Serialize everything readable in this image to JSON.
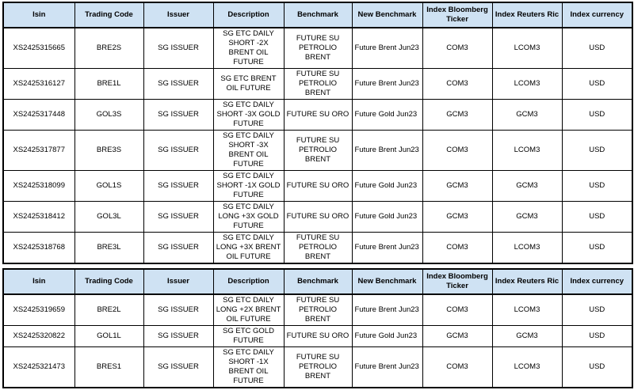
{
  "colors": {
    "header_bg": "#cfe2f3",
    "border": "#000000"
  },
  "columns": [
    {
      "key": "isin",
      "label": "Isin"
    },
    {
      "key": "trading-code",
      "label": "Trading Code"
    },
    {
      "key": "issuer",
      "label": "Issuer"
    },
    {
      "key": "description",
      "label": "Description"
    },
    {
      "key": "benchmark",
      "label": "Benchmark"
    },
    {
      "key": "new-benchmark",
      "label": "New Benchmark"
    },
    {
      "key": "index-bloomberg-ticker",
      "label": "Index Bloomberg Ticker"
    },
    {
      "key": "index-reuters-ric",
      "label": "Index Reuters Ric"
    },
    {
      "key": "index-currency",
      "label": "Index currency"
    }
  ],
  "tables": [
    {
      "rows": [
        [
          "XS2425315665",
          "BRE2S",
          "SG ISSUER",
          "SG ETC DAILY\nSHORT -2X\nBRENT OIL\nFUTURE",
          "FUTURE SU\nPETROLIO BRENT",
          "Future Brent Jun23",
          "COM3",
          "LCOM3",
          "USD"
        ],
        [
          "XS2425316127",
          "BRE1L",
          "SG ISSUER",
          "SG ETC BRENT\nOIL FUTURE",
          "FUTURE SU\nPETROLIO BRENT",
          "Future Brent Jun23",
          "COM3",
          "LCOM3",
          "USD"
        ],
        [
          "XS2425317448",
          "GOL3S",
          "SG ISSUER",
          "SG ETC DAILY\nSHORT -3X GOLD\nFUTURE",
          "FUTURE SU ORO",
          "Future Gold Jun23",
          "GCM3",
          "GCM3",
          "USD"
        ],
        [
          "XS2425317877",
          "BRE3S",
          "SG ISSUER",
          "SG ETC DAILY\nSHORT -3X\nBRENT OIL\nFUTURE",
          "FUTURE SU\nPETROLIO BRENT",
          "Future Brent Jun23",
          "COM3",
          "LCOM3",
          "USD"
        ],
        [
          "XS2425318099",
          "GOL1S",
          "SG ISSUER",
          "SG ETC DAILY\nSHORT -1X GOLD\nFUTURE",
          "FUTURE SU ORO",
          "Future Gold Jun23",
          "GCM3",
          "GCM3",
          "USD"
        ],
        [
          "XS2425318412",
          "GOL3L",
          "SG ISSUER",
          "SG ETC DAILY\nLONG +3X GOLD\nFUTURE",
          "FUTURE SU ORO",
          "Future Gold Jun23",
          "GCM3",
          "GCM3",
          "USD"
        ],
        [
          "XS2425318768",
          "BRE3L",
          "SG ISSUER",
          "SG ETC DAILY\nLONG +3X BRENT\nOIL FUTURE",
          "FUTURE SU\nPETROLIO BRENT",
          "Future Brent Jun23",
          "COM3",
          "LCOM3",
          "USD"
        ]
      ]
    },
    {
      "rows": [
        [
          "XS2425319659",
          "BRE2L",
          "SG ISSUER",
          "SG ETC DAILY\nLONG +2X BRENT\nOIL FUTURE",
          "FUTURE SU\nPETROLIO BRENT",
          "Future Brent Jun23",
          "COM3",
          "LCOM3",
          "USD"
        ],
        [
          "XS2425320822",
          "GOL1L",
          "SG ISSUER",
          "SG ETC GOLD\nFUTURE",
          "FUTURE SU ORO",
          "Future Gold Jun23",
          "GCM3",
          "GCM3",
          "USD"
        ],
        [
          "XS2425321473",
          "BRES1",
          "SG ISSUER",
          "SG ETC DAILY\nSHORT -1X\nBRENT OIL\nFUTURE",
          "FUTURE SU\nPETROLIO BRENT",
          "Future Brent Jun23",
          "COM3",
          "LCOM3",
          "USD"
        ]
      ]
    }
  ]
}
